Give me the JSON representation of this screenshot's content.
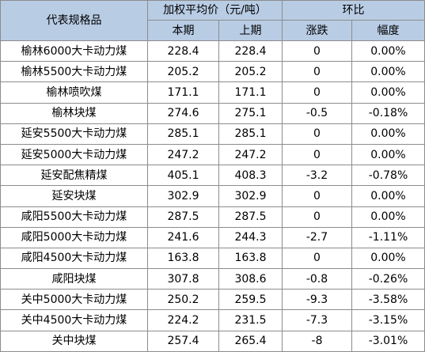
{
  "header": {
    "spec_label": "代表规格品",
    "price_group_label": "加权平均价（元/吨）",
    "change_group_label": "环比",
    "current_label": "本期",
    "previous_label": "上期",
    "change_label": "涨跌",
    "range_label": "幅度"
  },
  "rows": [
    {
      "name": "榆林6000大卡动力煤",
      "current": "228.4",
      "previous": "228.4",
      "change": "0",
      "range": "0.00%"
    },
    {
      "name": "榆林5500大卡动力煤",
      "current": "205.2",
      "previous": "205.2",
      "change": "0",
      "range": "0.00%"
    },
    {
      "name": "榆林喷吹煤",
      "current": "171.1",
      "previous": "171.1",
      "change": "0",
      "range": "0.00%"
    },
    {
      "name": "榆林块煤",
      "current": "274.6",
      "previous": "275.1",
      "change": "-0.5",
      "range": "-0.18%"
    },
    {
      "name": "延安5500大卡动力煤",
      "current": "285.1",
      "previous": "285.1",
      "change": "0",
      "range": "0.00%"
    },
    {
      "name": "延安5000大卡动力煤",
      "current": "247.2",
      "previous": "247.2",
      "change": "0",
      "range": "0.00%"
    },
    {
      "name": "延安配焦精煤",
      "current": "405.1",
      "previous": "408.3",
      "change": "-3.2",
      "range": "-0.78%"
    },
    {
      "name": "延安块煤",
      "current": "302.9",
      "previous": "302.9",
      "change": "0",
      "range": "0.00%"
    },
    {
      "name": "咸阳5500大卡动力煤",
      "current": "287.5",
      "previous": "287.5",
      "change": "0",
      "range": "0.00%"
    },
    {
      "name": "咸阳5000大卡动力煤",
      "current": "241.6",
      "previous": "244.3",
      "change": "-2.7",
      "range": "-1.11%"
    },
    {
      "name": "咸阳4500大卡动力煤",
      "current": "163.8",
      "previous": "163.8",
      "change": "0",
      "range": "0.00%"
    },
    {
      "name": "咸阳块煤",
      "current": "307.8",
      "previous": "308.6",
      "change": "-0.8",
      "range": "-0.26%"
    },
    {
      "name": "关中5000大卡动力煤",
      "current": "250.2",
      "previous": "259.5",
      "change": "-9.3",
      "range": "-3.58%"
    },
    {
      "name": "关中4500大卡动力煤",
      "current": "224.2",
      "previous": "231.5",
      "change": "-7.3",
      "range": "-3.15%"
    },
    {
      "name": "关中块煤",
      "current": "257.4",
      "previous": "265.4",
      "change": "-8",
      "range": "-3.01%"
    }
  ],
  "colors": {
    "header_background": "#b8cce4",
    "border": "#8c8c8c"
  }
}
